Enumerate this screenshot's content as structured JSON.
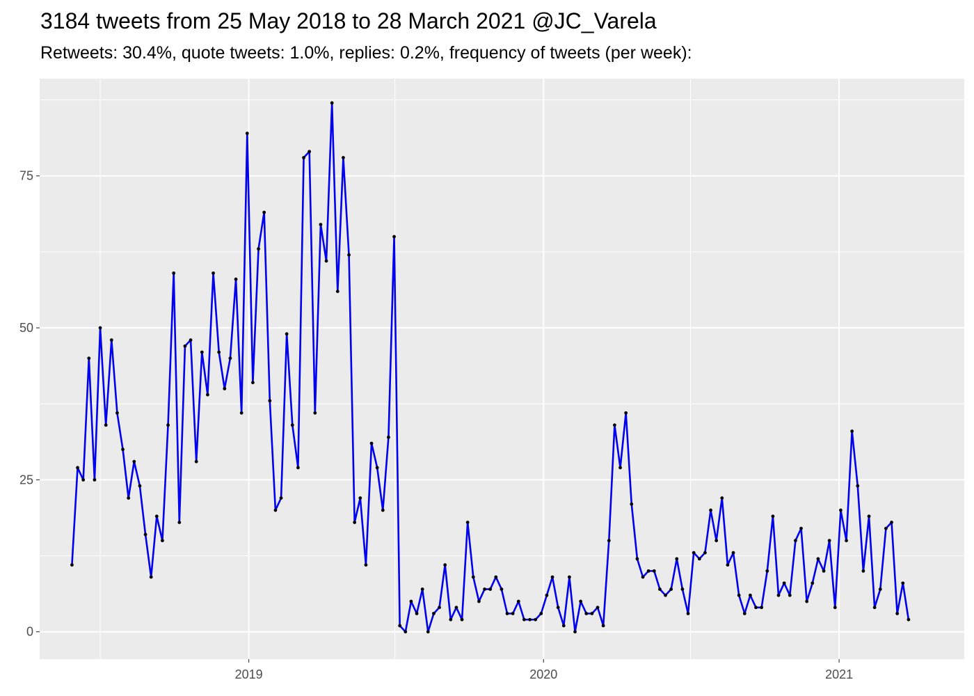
{
  "chart_data": {
    "type": "line",
    "title": "3184 tweets from 25 May 2018 to 28 March 2021 @JC_Varela",
    "subtitle": "Retweets: 30.4%, quote tweets: 1.0%, replies: 0.2%, frequency of tweets (per week):",
    "xlabel": "",
    "ylabel": "",
    "x_start_date": "2018-05-27",
    "x_step_days": 7,
    "x_ticks": [
      "2019",
      "2020",
      "2021"
    ],
    "y_ticks": [
      0,
      25,
      50,
      75
    ],
    "ylim": [
      -4.5,
      91
    ],
    "grid": true,
    "line_color": "#0000ee",
    "point_color": "#000000",
    "panel_color": "#ebebeb",
    "series": [
      {
        "values": [
          11,
          27,
          25,
          45,
          25,
          50,
          34,
          48,
          36,
          30,
          22,
          28,
          24,
          16,
          9,
          19,
          15,
          34,
          59,
          18,
          47,
          48,
          28,
          46,
          39,
          59,
          46,
          40,
          45,
          58,
          36,
          82,
          41,
          63,
          69,
          38,
          20,
          22,
          49,
          34,
          27,
          78,
          79,
          36,
          67,
          61,
          87,
          56,
          78,
          62,
          18,
          22,
          11,
          31,
          27,
          20,
          32,
          65,
          1,
          0,
          5,
          3,
          7,
          0,
          3,
          4,
          11,
          2,
          4,
          2,
          18,
          9,
          5,
          7,
          7,
          9,
          7,
          3,
          3,
          5,
          2,
          2,
          2,
          3,
          6,
          9,
          4,
          1,
          9,
          0,
          5,
          3,
          3,
          4,
          1,
          15,
          34,
          27,
          36,
          21,
          12,
          9,
          10,
          10,
          7,
          6,
          7,
          12,
          7,
          3,
          13,
          12,
          13,
          20,
          15,
          22,
          11,
          13,
          6,
          3,
          6,
          4,
          4,
          10,
          19,
          6,
          8,
          6,
          15,
          17,
          5,
          8,
          12,
          10,
          15,
          4,
          20,
          15,
          33,
          24,
          10,
          19,
          4,
          7,
          17,
          18,
          3,
          8,
          2
        ]
      }
    ]
  }
}
